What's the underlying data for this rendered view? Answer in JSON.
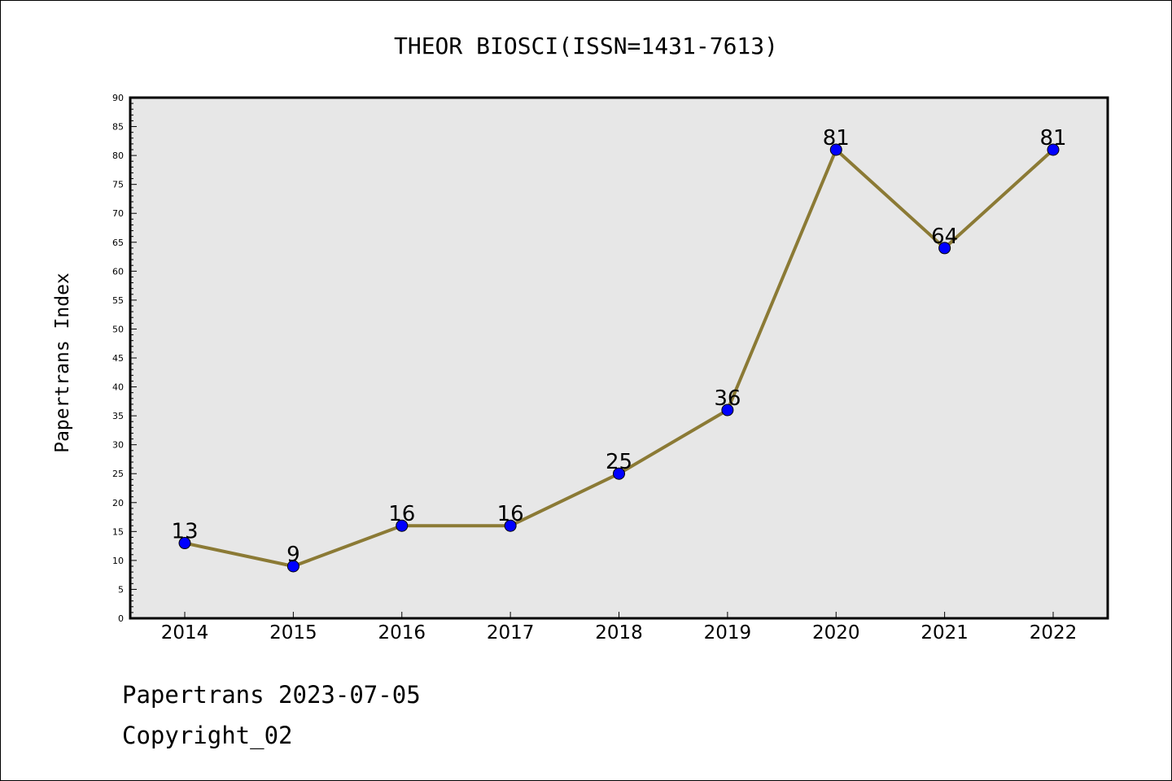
{
  "chart_data": {
    "type": "line",
    "title": "THEOR BIOSCI(ISSN=1431-7613)",
    "xlabel": "",
    "ylabel": "Papertrans Index",
    "categories": [
      "2014",
      "2015",
      "2016",
      "2017",
      "2018",
      "2019",
      "2020",
      "2021",
      "2022"
    ],
    "values": [
      13,
      9,
      16,
      16,
      25,
      36,
      81,
      64,
      81
    ],
    "data_labels": [
      "13",
      "9",
      "16",
      "16",
      "25",
      "36",
      "81",
      "64",
      "81"
    ],
    "ylim": [
      0,
      90
    ],
    "yticks": [
      "0",
      "5",
      "10",
      "15",
      "20",
      "25",
      "30",
      "35",
      "40",
      "45",
      "50",
      "55",
      "60",
      "65",
      "70",
      "75",
      "80",
      "85",
      "90"
    ],
    "grid": false,
    "legend": "none",
    "colors": {
      "line": "#8b7a35",
      "marker": "#0000ff",
      "plot_bg": "#e7e7e7"
    }
  },
  "footer": {
    "line1": "Papertrans 2023-07-05",
    "line2": "Copyright_02"
  }
}
